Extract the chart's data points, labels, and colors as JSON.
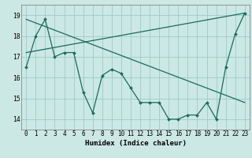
{
  "xlabel": "Humidex (Indice chaleur)",
  "background_color": "#cce8e4",
  "grid_color": "#99cccc",
  "line_color": "#1a6b5a",
  "xlim": [
    -0.5,
    23.5
  ],
  "ylim": [
    13.5,
    19.5
  ],
  "xticks": [
    0,
    1,
    2,
    3,
    4,
    5,
    6,
    7,
    8,
    9,
    10,
    11,
    12,
    13,
    14,
    15,
    16,
    17,
    18,
    19,
    20,
    21,
    22,
    23
  ],
  "yticks": [
    14,
    15,
    16,
    17,
    18,
    19
  ],
  "series1_x": [
    0,
    1,
    2,
    3,
    4,
    5,
    6,
    7,
    8,
    9,
    10,
    11,
    12,
    13,
    14,
    15,
    16,
    17,
    18,
    19,
    20,
    21,
    22,
    23
  ],
  "series1_y": [
    16.5,
    18.0,
    18.8,
    17.0,
    17.2,
    17.2,
    15.3,
    14.3,
    16.1,
    16.4,
    16.2,
    15.5,
    14.8,
    14.8,
    14.8,
    14.0,
    14.0,
    14.2,
    14.2,
    14.8,
    14.0,
    16.5,
    18.1,
    19.1
  ],
  "series2_x": [
    0,
    23
  ],
  "series2_y": [
    18.8,
    14.8
  ],
  "series3_x": [
    0,
    23
  ],
  "series3_y": [
    17.2,
    19.1
  ],
  "tick_fontsize": 5.5,
  "xlabel_fontsize": 6.5
}
